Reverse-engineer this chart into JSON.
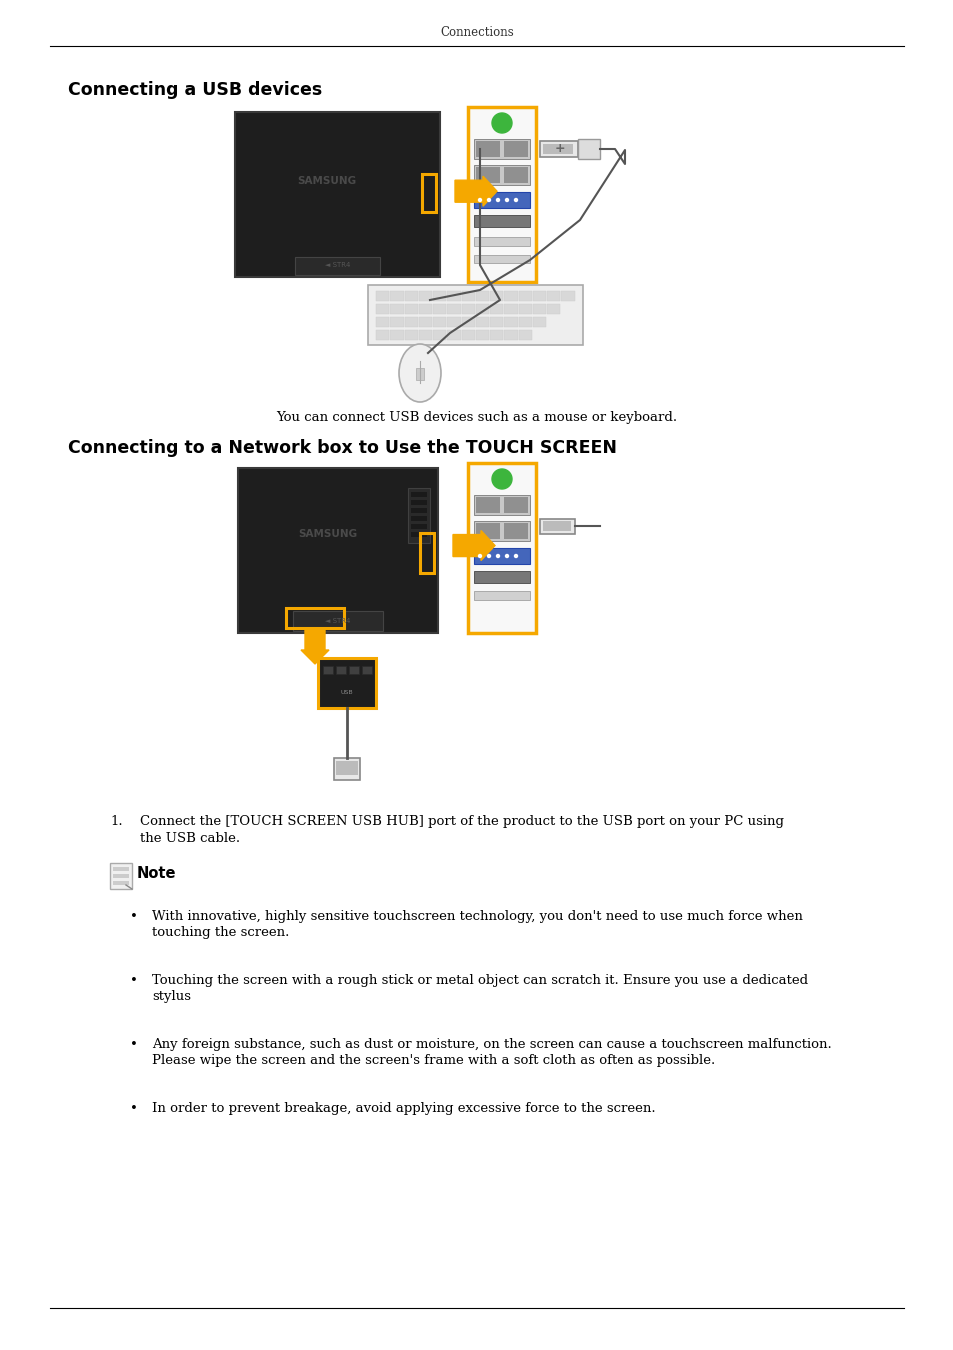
{
  "page_title": "Connections",
  "section1_title": "Connecting a USB devices",
  "section1_caption": "You can connect USB devices such as a mouse or keyboard.",
  "section2_title": "Connecting to a Network box to Use the TOUCH SCREEN",
  "step1_text": "Connect the [TOUCH SCREEN USB HUB] port of the product to the USB port on your PC using\nthe USB cable.",
  "note_title": "Note",
  "bullet_points": [
    "With innovative, highly sensitive touchscreen technology, you don't need to use much force when\ntouching the screen.",
    "Touching the screen with a rough stick or metal object can scratch it. Ensure you use a dedicated\nstylus",
    "Any foreign substance, such as dust or moisture, on the screen can cause a touchscreen malfunction.\nPlease wipe the screen and the screen's frame with a soft cloth as often as possible.",
    "In order to prevent breakage, avoid applying excessive force to the screen."
  ],
  "bg_color": "#ffffff",
  "text_color": "#000000",
  "arrow_color": "#f5a800",
  "border_color": "#f5a800",
  "monitor_color": "#1e1e1e",
  "monitor_edge": "#3a3a3a",
  "panel_bg": "#f8f8f8",
  "green_dot": "#3db53d",
  "usb_gray": "#c8c8c8",
  "usb_dark": "#909090",
  "vga_blue": "#4466bb",
  "port_gray": "#888888",
  "slot_light": "#d0d0d0",
  "kb_bg": "#eeeeee",
  "kb_key": "#d8d8d8",
  "mouse_bg": "#f0f0f0",
  "cable_color": "#555555",
  "nb_color": "#1e1e1e"
}
